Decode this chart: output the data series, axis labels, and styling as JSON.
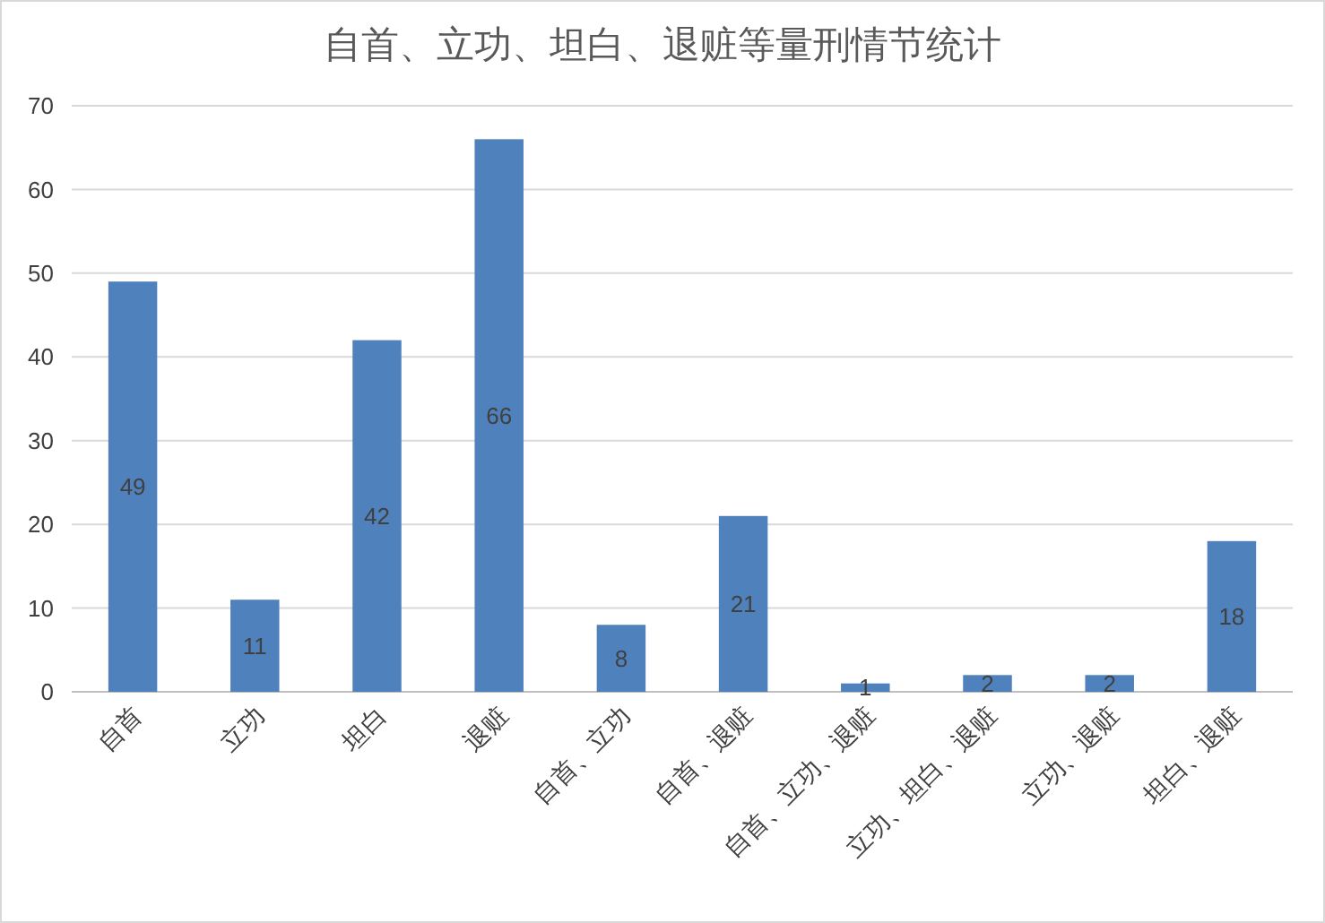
{
  "chart_data": {
    "type": "bar",
    "title": "自首、立功、坦白、退赃等量刑情节统计",
    "categories": [
      "自首",
      "立功",
      "坦白",
      "退赃",
      "自首、立功",
      "自首、退赃",
      "自首、立功、退赃",
      "立功、坦白、退赃",
      "立功、退赃",
      "坦白、退赃"
    ],
    "values": [
      49,
      11,
      42,
      66,
      8,
      21,
      1,
      2,
      2,
      18
    ],
    "color": "#4f81bd",
    "ylim": [
      0,
      70
    ],
    "yticks": [
      0,
      10,
      20,
      30,
      40,
      50,
      60,
      70
    ],
    "grid": "y",
    "data_labels": true
  }
}
